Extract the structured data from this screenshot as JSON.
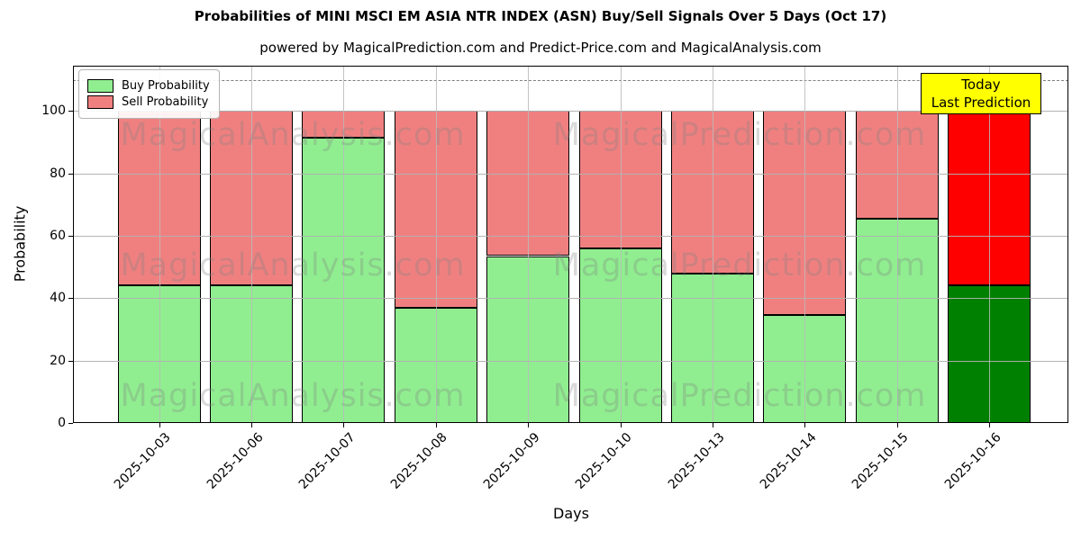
{
  "title": "Probabilities of MINI MSCI EM ASIA NTR INDEX (ASN) Buy/Sell Signals Over 5 Days (Oct 17)",
  "subtitle": "powered by MagicalPrediction.com and Predict-Price.com and MagicalAnalysis.com",
  "annotation": {
    "line1": "Today",
    "line2": "Last Prediction",
    "bg_color": "#ffff00"
  },
  "watermarks": {
    "left": "MagicalAnalysis.com",
    "right": "MagicalPrediction.com"
  },
  "chart_data": {
    "type": "bar",
    "stacked": true,
    "title": "Probabilities of MINI MSCI EM ASIA NTR INDEX (ASN) Buy/Sell Signals Over 5 Days (Oct 17)",
    "xlabel": "Days",
    "ylabel": "Probability",
    "categories": [
      "2025-10-03",
      "2025-10-06",
      "2025-10-07",
      "2025-10-08",
      "2025-10-09",
      "2025-10-10",
      "2025-10-13",
      "2025-10-14",
      "2025-10-15",
      "2025-10-16"
    ],
    "series": [
      {
        "name": "Buy Probability",
        "color": "#90ee90",
        "values": [
          44,
          44,
          91.5,
          37,
          53.5,
          56,
          48,
          34.5,
          65.5,
          44
        ]
      },
      {
        "name": "Sell Probability",
        "color": "#f08080",
        "values": [
          56,
          56,
          8.5,
          63,
          46.5,
          44,
          52,
          65.5,
          34.5,
          56
        ]
      }
    ],
    "last_bar_override": {
      "buy_color": "#008000",
      "sell_color": "#ff0000"
    },
    "yticks": [
      0,
      20,
      40,
      60,
      80,
      100
    ],
    "ylim": [
      0,
      114.5
    ],
    "dashed_line_y": 110,
    "grid": true,
    "legend_position": "upper-left",
    "grid_color": "#b0b0b0",
    "bar_edge_color": "#000000"
  }
}
